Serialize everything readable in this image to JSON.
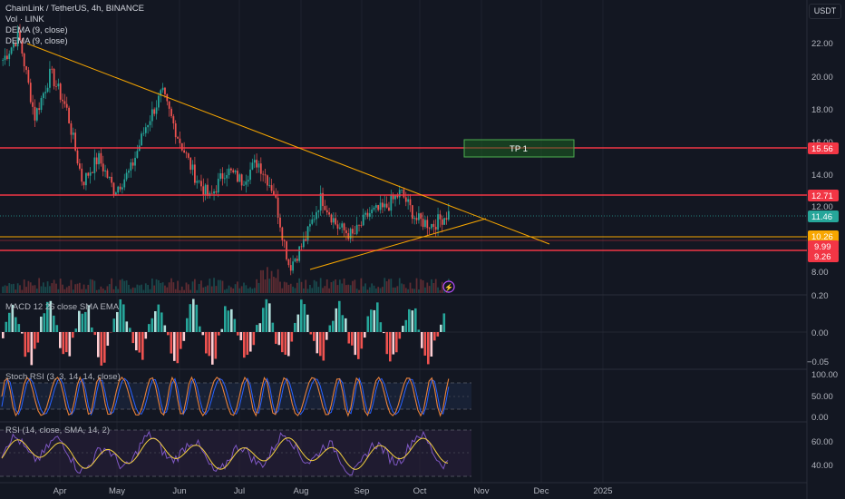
{
  "header": {
    "symbol_line": "ChainLink / TetherUS, 4h, BINANCE",
    "vol_line": "Vol · LINK",
    "dema1_line": "DEMA (9, close)",
    "dema2_line": "DEMA (9, close)",
    "currency": "USDT"
  },
  "price_axis": {
    "ticks": [
      "22.00",
      "20.00",
      "18.00",
      "16.00",
      "14.00",
      "12.00",
      "8.00"
    ],
    "tags": [
      {
        "label": "15.56",
        "color": "#f23645"
      },
      {
        "label": "12.71",
        "color": "#f23645"
      },
      {
        "label": "11.46",
        "color": "#26a69a"
      },
      {
        "label": "10.26",
        "color": "#f7a600"
      },
      {
        "label": "9.99",
        "color": "#f23645"
      },
      {
        "label": "9.26",
        "color": "#f23645"
      }
    ]
  },
  "annotations": {
    "tp_label": "TP 1"
  },
  "panes": {
    "macd": {
      "legend": "MACD 12 26 close SMA EMA",
      "ticks": [
        "0.20",
        "0.00",
        "−0.05"
      ]
    },
    "stoch": {
      "legend": "Stoch RSI (3, 3, 14, 14, close)",
      "ticks": [
        "100.00",
        "50.00",
        "0.00"
      ]
    },
    "rsi": {
      "legend": "RSI (14, close, SMA, 14, 2)",
      "ticks": [
        "60.00",
        "40.00"
      ]
    }
  },
  "time_axis": {
    "labels": [
      "Apr",
      "May",
      "Jun",
      "Jul",
      "Aug",
      "Sep",
      "Oct",
      "Nov",
      "Dec",
      "2025"
    ]
  },
  "colors": {
    "background": "#131722",
    "up": "#26a69a",
    "down": "#ef5350",
    "resistance": "#f23645",
    "trendline": "#f7a600",
    "tp_box": "#4caf50",
    "stoch_k": "#e8813a",
    "stoch_d": "#2962ff",
    "rsi_line": "#7e57c2",
    "rsi_ma": "#f4d03f"
  },
  "chart_data": {
    "type": "candlestick",
    "symbol": "LINK/USDT",
    "interval": "4h",
    "exchange": "BINANCE",
    "ylim": [
      7.5,
      23.5
    ],
    "horizontal_levels": [
      15.56,
      12.71,
      9.99,
      9.26
    ],
    "current_price": 11.46,
    "dema_value": 10.26,
    "tp_zone": {
      "label": "TP 1",
      "low": 15.1,
      "high": 16.1,
      "from": "Oct",
      "to": "Nov"
    },
    "trendlines": [
      {
        "name": "descending",
        "from": {
          "time": "Mar",
          "price": 23.0
        },
        "to": {
          "time": "Nov",
          "price": 10.2
        }
      },
      {
        "name": "ascending",
        "from": {
          "time": "Aug",
          "price": 8.1
        },
        "to": {
          "time": "Oct",
          "price": 11.2
        }
      }
    ],
    "price_path": [
      {
        "t": "Mar",
        "p": 21.0
      },
      {
        "t": "Mar",
        "p": 22.5
      },
      {
        "t": "Apr",
        "p": 17.5
      },
      {
        "t": "Apr",
        "p": 20.2
      },
      {
        "t": "Apr",
        "p": 18.0
      },
      {
        "t": "Apr",
        "p": 13.5
      },
      {
        "t": "May",
        "p": 15.0
      },
      {
        "t": "May",
        "p": 13.0
      },
      {
        "t": "May",
        "p": 14.2
      },
      {
        "t": "Jun",
        "p": 17.0
      },
      {
        "t": "Jun",
        "p": 19.0
      },
      {
        "t": "Jun",
        "p": 16.3
      },
      {
        "t": "Jul",
        "p": 14.0
      },
      {
        "t": "Jul",
        "p": 12.5
      },
      {
        "t": "Jul",
        "p": 14.3
      },
      {
        "t": "Jul",
        "p": 13.6
      },
      {
        "t": "Aug",
        "p": 14.8
      },
      {
        "t": "Aug",
        "p": 13.0
      },
      {
        "t": "Aug",
        "p": 8.3
      },
      {
        "t": "Aug",
        "p": 10.0
      },
      {
        "t": "Sep",
        "p": 12.6
      },
      {
        "t": "Sep",
        "p": 10.8
      },
      {
        "t": "Sep",
        "p": 10.2
      },
      {
        "t": "Sep",
        "p": 11.6
      },
      {
        "t": "Oct",
        "p": 11.9
      },
      {
        "t": "Oct",
        "p": 12.9
      },
      {
        "t": "Oct",
        "p": 11.2
      },
      {
        "t": "Oct",
        "p": 10.9
      },
      {
        "t": "Oct",
        "p": 11.6
      }
    ]
  }
}
